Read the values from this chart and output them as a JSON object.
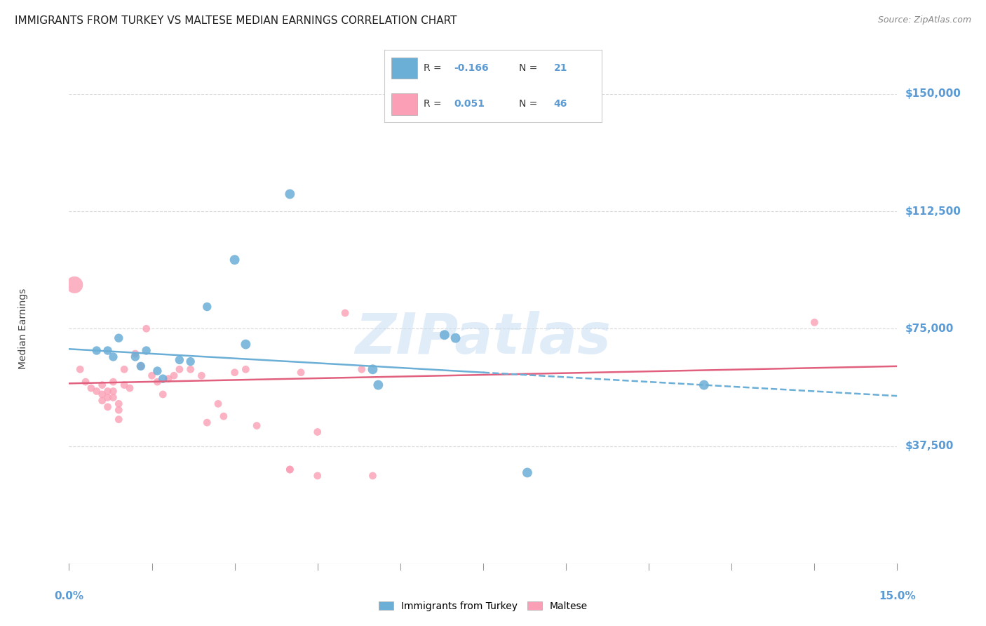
{
  "title": "IMMIGRANTS FROM TURKEY VS MALTESE MEDIAN EARNINGS CORRELATION CHART",
  "source": "Source: ZipAtlas.com",
  "ylabel": "Median Earnings",
  "xmin": 0.0,
  "xmax": 0.15,
  "ymin": 0,
  "ymax": 150000,
  "yticks": [
    37500,
    75000,
    112500,
    150000
  ],
  "ytick_labels": [
    "$37,500",
    "$75,000",
    "$112,500",
    "$150,000"
  ],
  "watermark": "ZIPatlas",
  "turkey_color": "#6baed6",
  "maltese_color": "#fa9fb5",
  "turkey_R": "-0.166",
  "turkey_N": "21",
  "maltese_R": "0.051",
  "maltese_N": "46",
  "turkey_scatter": [
    [
      0.005,
      68000
    ],
    [
      0.007,
      68000
    ],
    [
      0.008,
      66000
    ],
    [
      0.009,
      72000
    ],
    [
      0.012,
      66000
    ],
    [
      0.013,
      63000
    ],
    [
      0.014,
      68000
    ],
    [
      0.016,
      61500
    ],
    [
      0.017,
      59000
    ],
    [
      0.02,
      65000
    ],
    [
      0.022,
      64500
    ],
    [
      0.025,
      82000
    ],
    [
      0.03,
      97000
    ],
    [
      0.032,
      70000
    ],
    [
      0.04,
      118000
    ],
    [
      0.055,
      62000
    ],
    [
      0.056,
      57000
    ],
    [
      0.068,
      73000
    ],
    [
      0.07,
      72000
    ],
    [
      0.083,
      29000
    ],
    [
      0.115,
      57000
    ]
  ],
  "turkey_sizes": [
    80,
    80,
    80,
    80,
    80,
    80,
    80,
    80,
    80,
    80,
    80,
    80,
    100,
    100,
    100,
    100,
    100,
    100,
    100,
    100,
    100
  ],
  "maltese_scatter": [
    [
      0.001,
      89000
    ],
    [
      0.002,
      62000
    ],
    [
      0.003,
      58000
    ],
    [
      0.004,
      56000
    ],
    [
      0.005,
      55000
    ],
    [
      0.006,
      54000
    ],
    [
      0.006,
      57000
    ],
    [
      0.006,
      52000
    ],
    [
      0.007,
      55000
    ],
    [
      0.007,
      53000
    ],
    [
      0.007,
      50000
    ],
    [
      0.008,
      58000
    ],
    [
      0.008,
      55000
    ],
    [
      0.008,
      53000
    ],
    [
      0.009,
      51000
    ],
    [
      0.009,
      49000
    ],
    [
      0.009,
      46000
    ],
    [
      0.01,
      62000
    ],
    [
      0.01,
      57000
    ],
    [
      0.011,
      56000
    ],
    [
      0.012,
      67000
    ],
    [
      0.013,
      63000
    ],
    [
      0.014,
      75000
    ],
    [
      0.015,
      60000
    ],
    [
      0.016,
      58000
    ],
    [
      0.017,
      54000
    ],
    [
      0.018,
      59000
    ],
    [
      0.019,
      60000
    ],
    [
      0.02,
      62000
    ],
    [
      0.022,
      62000
    ],
    [
      0.024,
      60000
    ],
    [
      0.025,
      45000
    ],
    [
      0.027,
      51000
    ],
    [
      0.028,
      47000
    ],
    [
      0.03,
      61000
    ],
    [
      0.032,
      62000
    ],
    [
      0.034,
      44000
    ],
    [
      0.04,
      30000
    ],
    [
      0.042,
      61000
    ],
    [
      0.045,
      42000
    ],
    [
      0.05,
      80000
    ],
    [
      0.053,
      62000
    ],
    [
      0.04,
      30000
    ],
    [
      0.045,
      28000
    ],
    [
      0.055,
      28000
    ],
    [
      0.135,
      77000
    ]
  ],
  "maltese_sizes_base": 60,
  "maltese_large_idx": 0,
  "maltese_large_size": 300,
  "turkey_line_solid": [
    [
      0.0,
      68500
    ],
    [
      0.075,
      61000
    ]
  ],
  "turkey_line_dashed": [
    [
      0.075,
      61000
    ],
    [
      0.15,
      53500
    ]
  ],
  "maltese_line": [
    [
      0.0,
      57500
    ],
    [
      0.15,
      63000
    ]
  ],
  "background_color": "#ffffff",
  "grid_color": "#d9d9d9",
  "title_color": "#222222",
  "ylabel_color": "#444444",
  "axis_tick_color": "#5b9bd5",
  "legend_label_turkey": "Immigrants from Turkey",
  "legend_label_maltese": "Maltese"
}
